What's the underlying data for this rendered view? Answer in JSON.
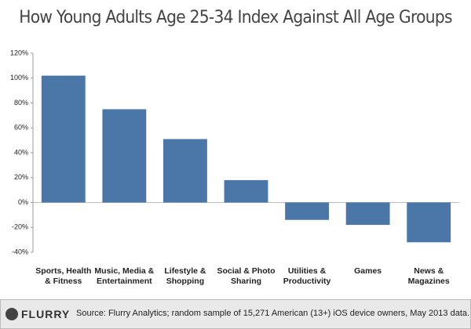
{
  "chart_data": {
    "type": "bar",
    "title": "How Young Adults Age 25-34 Index Against All Age Groups",
    "categories": [
      "Sports, Health & Fitness",
      "Music, Media & Entertainment",
      "Lifestyle & Shopping",
      "Social & Photo Sharing",
      "Utilities & Productivity",
      "Games",
      "News & Magazines"
    ],
    "values": [
      102,
      75,
      51,
      18,
      -14,
      -18,
      -32
    ],
    "color": "#4a76a8",
    "ylim": [
      -40,
      120
    ],
    "yticks": [
      {
        "value": -40,
        "label": "-40%"
      },
      {
        "value": -20,
        "label": "-20%"
      },
      {
        "value": 0,
        "label": "0%"
      },
      {
        "value": 20,
        "label": "20%"
      },
      {
        "value": 40,
        "label": "40%"
      },
      {
        "value": 60,
        "label": "60%"
      },
      {
        "value": 80,
        "label": "80%"
      },
      {
        "value": 100,
        "label": "100%"
      },
      {
        "value": 120,
        "label": "120%"
      }
    ],
    "grid": false,
    "logo": "FLURRY",
    "source": "Source: Flurry Analytics; random sample of 15,271 American (13+) iOS device owners, May 2013 data."
  }
}
